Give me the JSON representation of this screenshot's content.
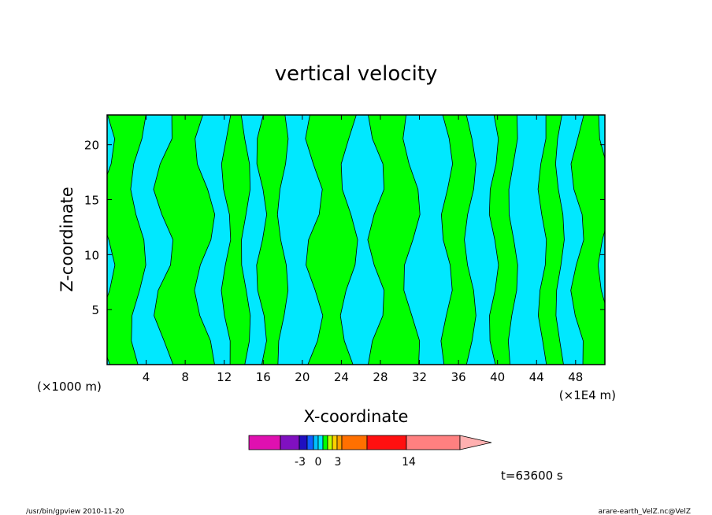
{
  "chart_data": {
    "type": "heatmap",
    "title": "vertical velocity",
    "xlabel": "X-coordinate",
    "ylabel": "Z-coordinate",
    "x_ticks": [
      4,
      8,
      12,
      16,
      20,
      24,
      28,
      32,
      36,
      40,
      44,
      48
    ],
    "y_ticks": [
      5,
      10,
      15,
      20
    ],
    "xlim": [
      0,
      51
    ],
    "ylim": [
      0,
      22.7
    ],
    "x_units_left": "(×1000 m)",
    "x_units_right": "(×1E4 m)",
    "colorbar": {
      "colors": [
        "#e010b0",
        "#8010c0",
        "#2010c0",
        "#1060ff",
        "#00c0ff",
        "#00e8ff",
        "#00ff00",
        "#c0ff00",
        "#ffd000",
        "#ffa000",
        "#ff7000",
        "#ff1010",
        "#ff8080",
        "#ffb0b0"
      ],
      "labels": [
        "-3",
        "0",
        "3",
        "14"
      ]
    },
    "field": {
      "positive_color": "#00ff00",
      "negative_color": "#00e8ff",
      "positive_columns_x": [
        [
          0,
          3.2
        ],
        [
          5.8,
          10
        ],
        [
          12.2,
          14.2
        ],
        [
          15.8,
          18
        ],
        [
          21.2,
          24.8
        ],
        [
          27.6,
          31.2
        ],
        [
          34.8,
          37.2
        ],
        [
          39.6,
          41.6
        ],
        [
          44.6,
          46.4
        ],
        [
          48.2,
          51
        ]
      ]
    },
    "time_label": "t=63600 s"
  },
  "footer": {
    "left": "/usr/bin/gpview  2010-11-20",
    "right": "arare-earth_VelZ.nc@VelZ"
  }
}
